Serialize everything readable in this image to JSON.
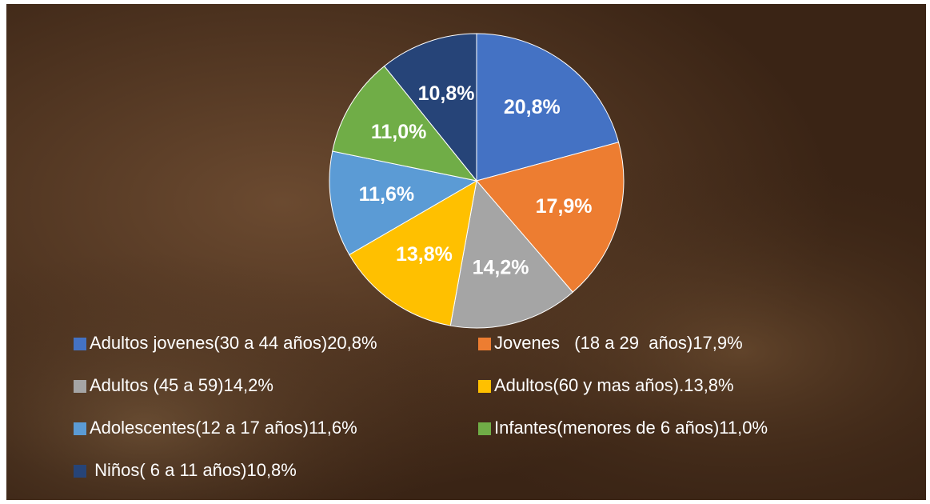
{
  "chart_data": {
    "type": "pie",
    "categories": [
      "Adultos jovenes(30 a 44 años)20,8%",
      "Jovenes   (18 a 29  años)17,9%",
      "Adultos (45 a 59)14,2%",
      "Adultos(60 y mas años).13,8%",
      "Adolescentes(12 a 17 años)11,6%",
      "Infantes(menores de 6 años)11,0%",
      " Niños( 6 a 11 años)10,8%"
    ],
    "values": [
      20.8,
      17.9,
      14.2,
      13.8,
      11.6,
      11.0,
      10.8
    ],
    "value_labels": [
      "20,8%",
      "17,9%",
      "14,2%",
      "13,8%",
      "11,6%",
      "11,0%",
      "10,8%"
    ],
    "colors": [
      "#4472c4",
      "#ed7d31",
      "#a5a5a5",
      "#ffc000",
      "#5b9bd5",
      "#70ad47",
      "#264478"
    ],
    "legend": "bottom"
  }
}
